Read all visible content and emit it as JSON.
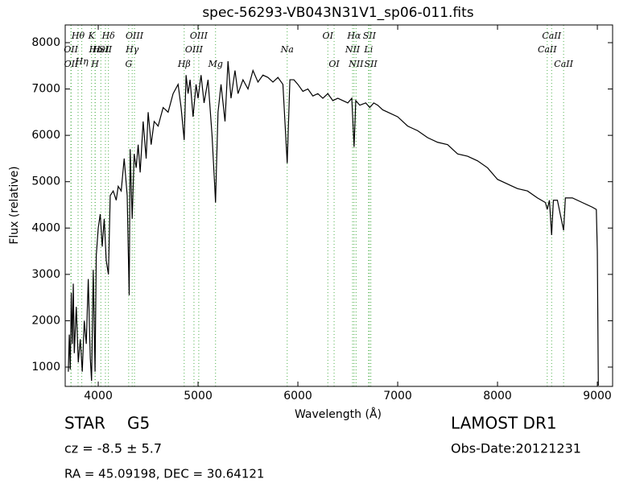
{
  "chart_data": {
    "type": "line",
    "title": "spec-56293-VB043N31V1_sp06-011.fits",
    "xlabel": "Wavelength (Å)",
    "ylabel": "Flux (relative)",
    "xlim": [
      3669,
      9153
    ],
    "ylim": [
      583,
      8382
    ],
    "xticks": [
      4000,
      5000,
      6000,
      7000,
      8000,
      9000
    ],
    "yticks": [
      1000,
      2000,
      3000,
      4000,
      5000,
      6000,
      7000,
      8000
    ],
    "series": [
      {
        "color": "#000000",
        "x": [
          3700,
          3710,
          3720,
          3730,
          3740,
          3750,
          3760,
          3780,
          3800,
          3820,
          3840,
          3860,
          3880,
          3900,
          3920,
          3933,
          3950,
          3968,
          3980,
          4000,
          4020,
          4040,
          4060,
          4080,
          4102,
          4120,
          4150,
          4180,
          4200,
          4230,
          4260,
          4290,
          4300,
          4310,
          4320,
          4340,
          4360,
          4380,
          4400,
          4420,
          4450,
          4480,
          4500,
          4530,
          4560,
          4600,
          4650,
          4700,
          4750,
          4800,
          4830,
          4861,
          4880,
          4900,
          4920,
          4950,
          4980,
          5000,
          5030,
          5060,
          5100,
          5140,
          5167,
          5175,
          5183,
          5200,
          5230,
          5270,
          5300,
          5330,
          5370,
          5400,
          5450,
          5500,
          5550,
          5600,
          5650,
          5700,
          5750,
          5800,
          5850,
          5893,
          5920,
          5960,
          6000,
          6050,
          6100,
          6150,
          6200,
          6250,
          6300,
          6350,
          6400,
          6450,
          6500,
          6540,
          6563,
          6580,
          6620,
          6680,
          6720,
          6760,
          6800,
          6850,
          6900,
          7000,
          7100,
          7200,
          7300,
          7400,
          7500,
          7600,
          7700,
          7800,
          7900,
          8000,
          8100,
          8200,
          8300,
          8400,
          8480,
          8498,
          8520,
          8542,
          8560,
          8600,
          8662,
          8680,
          8750,
          8850,
          8950,
          8990,
          9000,
          9010
        ],
        "values": [
          900,
          1700,
          950,
          2600,
          1500,
          2800,
          1300,
          2300,
          1100,
          1600,
          900,
          2000,
          1500,
          2900,
          1200,
          700,
          3100,
          900,
          3400,
          4000,
          4300,
          3600,
          4200,
          3300,
          3000,
          4700,
          4800,
          4600,
          4900,
          4800,
          5500,
          4700,
          3600,
          2550,
          5700,
          4200,
          5600,
          5300,
          5800,
          5200,
          6300,
          5500,
          6500,
          5800,
          6300,
          6200,
          6600,
          6500,
          6900,
          7100,
          6600,
          5900,
          7300,
          6900,
          7200,
          6400,
          7100,
          6800,
          7300,
          6700,
          7200,
          6000,
          4900,
          4550,
          5200,
          6500,
          7100,
          6300,
          7600,
          6800,
          7400,
          6900,
          7200,
          7000,
          7400,
          7150,
          7300,
          7250,
          7150,
          7250,
          7100,
          5400,
          7200,
          7200,
          7100,
          6950,
          7000,
          6850,
          6900,
          6800,
          6900,
          6750,
          6800,
          6750,
          6700,
          6800,
          5750,
          6750,
          6650,
          6700,
          6600,
          6700,
          6650,
          6550,
          6500,
          6400,
          6200,
          6100,
          5950,
          5850,
          5800,
          5600,
          5550,
          5450,
          5300,
          5050,
          4950,
          4850,
          4800,
          4650,
          4550,
          4400,
          4600,
          3850,
          4600,
          4600,
          3950,
          4650,
          4650,
          4550,
          4450,
          4400,
          3500,
          600
        ]
      }
    ],
    "lines_color": "#4daf4a",
    "annotations": [
      {
        "label": "OII",
        "x": 3726,
        "y": 7844
      },
      {
        "label": "OII",
        "x": 3729,
        "y": 7531
      },
      {
        "label": "Hθ",
        "x": 3798,
        "y": 8139
      },
      {
        "label": "Hη",
        "x": 3835,
        "y": 7583
      },
      {
        "label": "K",
        "x": 3933,
        "y": 8139
      },
      {
        "label": "H",
        "x": 3968,
        "y": 7531
      },
      {
        "label": "Hε",
        "x": 3970,
        "y": 7844
      },
      {
        "label": "HeI",
        "x": 4026,
        "y": 7844
      },
      {
        "label": "SII",
        "x": 4072,
        "y": 7844
      },
      {
        "label": "Hδ",
        "x": 4102,
        "y": 8139
      },
      {
        "label": "G",
        "x": 4305,
        "y": 7531
      },
      {
        "label": "Hγ",
        "x": 4340,
        "y": 7844
      },
      {
        "label": "OIII",
        "x": 4363,
        "y": 8139
      },
      {
        "label": "Hβ",
        "x": 4861,
        "y": 7531
      },
      {
        "label": "OIII",
        "x": 4959,
        "y": 7844
      },
      {
        "label": "OIII",
        "x": 5007,
        "y": 8139
      },
      {
        "label": "Mg",
        "x": 5175,
        "y": 7531
      },
      {
        "label": "Na",
        "x": 5893,
        "y": 7844
      },
      {
        "label": "OI",
        "x": 6300,
        "y": 8139
      },
      {
        "label": "OI",
        "x": 6363,
        "y": 7531
      },
      {
        "label": "NII",
        "x": 6548,
        "y": 7844
      },
      {
        "label": "Hα",
        "x": 6563,
        "y": 8139
      },
      {
        "label": "NII",
        "x": 6583,
        "y": 7531
      },
      {
        "label": "Li",
        "x": 6708,
        "y": 7844
      },
      {
        "label": "SII",
        "x": 6716,
        "y": 8139
      },
      {
        "label": "SII",
        "x": 6731,
        "y": 7531
      },
      {
        "label": "CaII",
        "x": 8498,
        "y": 7844
      },
      {
        "label": "CaII",
        "x": 8542,
        "y": 8139
      },
      {
        "label": "CaII",
        "x": 8662,
        "y": 7531
      }
    ]
  },
  "info": {
    "class": "STAR",
    "subclass": "G5",
    "cz": "cz = -8.5  ± 5.7",
    "coords": "RA = 45.09198, DEC = 30.64121",
    "survey": "LAMOST DR1",
    "date": "Obs-Date:20121231"
  }
}
